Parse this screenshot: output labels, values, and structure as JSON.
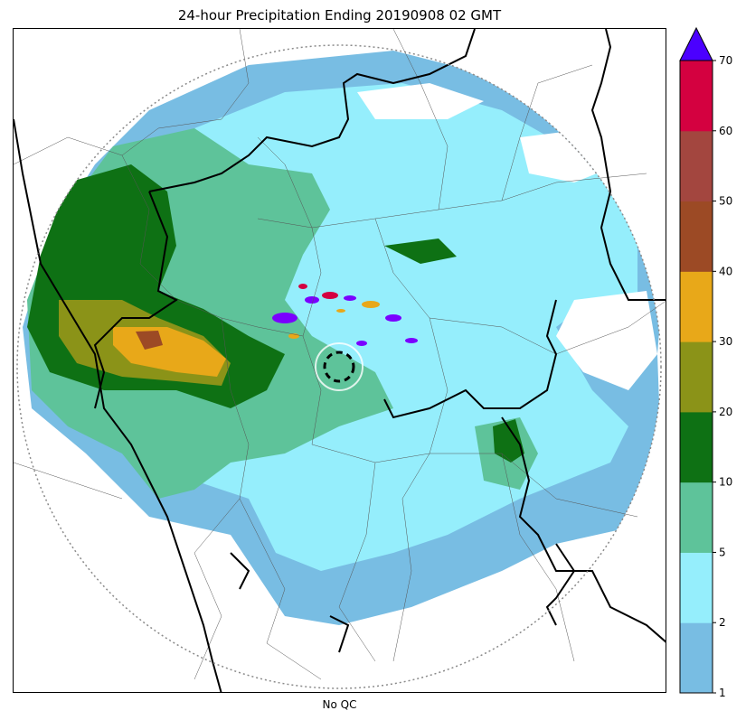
{
  "title": "24-hour Precipitation Ending 20190908 02 GMT",
  "xlabel": "No QC",
  "legend": {
    "type": "colorbar",
    "extend": "max",
    "extend_color": "#4b00ff",
    "levels": [
      {
        "from": 1,
        "to": 2,
        "color": "#78bde3"
      },
      {
        "from": 2,
        "to": 5,
        "color": "#95eefc"
      },
      {
        "from": 5,
        "to": 10,
        "color": "#5ec39a"
      },
      {
        "from": 10,
        "to": 20,
        "color": "#0e7114"
      },
      {
        "from": 20,
        "to": 30,
        "color": "#8b9318"
      },
      {
        "from": 30,
        "to": 40,
        "color": "#e8a819"
      },
      {
        "from": 40,
        "to": 50,
        "color": "#9c4a25"
      },
      {
        "from": 50,
        "to": 60,
        "color": "#a3463f"
      },
      {
        "from": 60,
        "to": 70,
        "color": "#d40140"
      }
    ],
    "ticks": [
      "1",
      "2",
      "5",
      "10",
      "20",
      "30",
      "40",
      "50",
      "60",
      "70"
    ]
  },
  "map": {
    "radar_range_ring": "dotted",
    "boundaries": [
      "state-borders",
      "district-borders",
      "coastline"
    ],
    "colors": {
      "land": "#ffffff",
      "state_border": "#000000",
      "district_border": "#555555",
      "range_ring": "#8a8a8a",
      "convective_cells": "#7a00ff"
    }
  }
}
